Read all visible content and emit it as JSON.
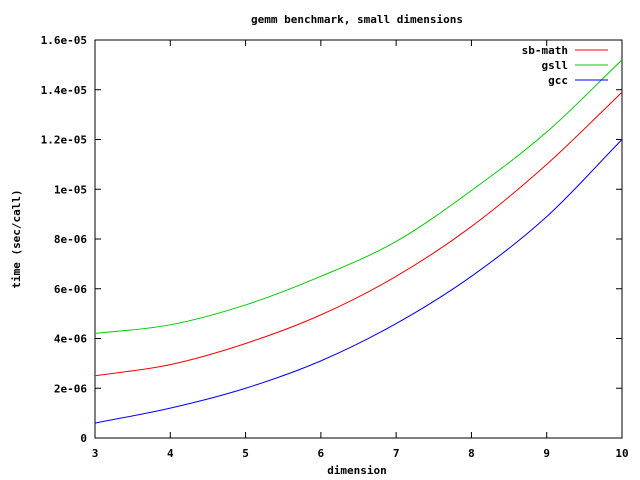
{
  "chart_data": {
    "type": "line",
    "title": "gemm benchmark, small dimensions",
    "xlabel": "dimension",
    "ylabel": "time (sec/call)",
    "xlim": [
      3,
      10
    ],
    "ylim": [
      0,
      1.6e-05
    ],
    "x_ticks": [
      3,
      4,
      5,
      6,
      7,
      8,
      9,
      10
    ],
    "x_tick_labels": [
      "3",
      "4",
      "5",
      "6",
      "7",
      "8",
      "9",
      "10"
    ],
    "y_ticks": [
      0,
      2e-06,
      4e-06,
      6e-06,
      8e-06,
      1e-05,
      1.2e-05,
      1.4e-05,
      1.6e-05
    ],
    "y_tick_labels": [
      "0",
      "2e-06",
      "4e-06",
      "6e-06",
      "8e-06",
      "1e-05",
      "1.2e-05",
      "1.4e-05",
      "1.6e-05"
    ],
    "grid": false,
    "legend_position": "top-right",
    "x": [
      3,
      4,
      5,
      6,
      7,
      8,
      9,
      10
    ],
    "series": [
      {
        "name": "sb-math",
        "color": "#ff0000",
        "values": [
          2.5e-06,
          2.95e-06,
          3.8e-06,
          4.95e-06,
          6.5e-06,
          8.5e-06,
          1.1e-05,
          1.39e-05
        ]
      },
      {
        "name": "gsll",
        "color": "#00cc00",
        "values": [
          4.2e-06,
          4.55e-06,
          5.35e-06,
          6.5e-06,
          7.9e-06,
          9.95e-06,
          1.23e-05,
          1.52e-05
        ]
      },
      {
        "name": "gcc",
        "color": "#0000ff",
        "values": [
          6e-07,
          1.2e-06,
          2e-06,
          3.1e-06,
          4.6e-06,
          6.5e-06,
          8.9e-06,
          1.2e-05
        ]
      }
    ]
  }
}
